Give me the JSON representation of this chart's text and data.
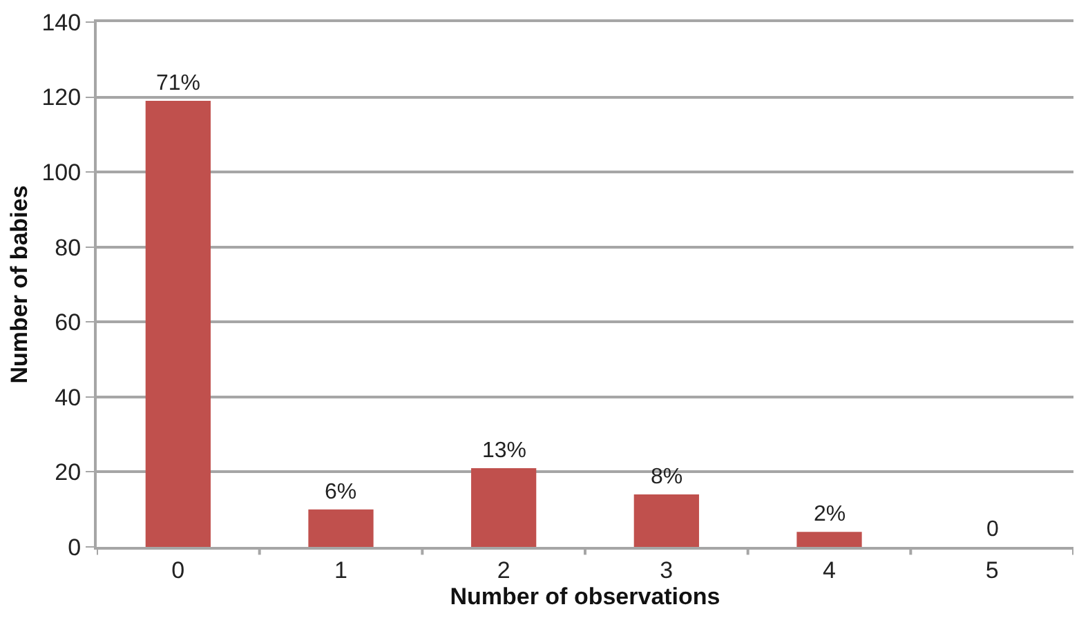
{
  "chart_data": {
    "type": "bar",
    "xlabel": "Number of observations",
    "ylabel": "Number of babies",
    "categories": [
      "0",
      "1",
      "2",
      "3",
      "4",
      "5"
    ],
    "values": [
      119,
      10,
      21,
      14,
      4,
      0
    ],
    "annotations": [
      {
        "text": "71%",
        "x": "0",
        "y": 119
      },
      {
        "text": "6%",
        "x": "1",
        "y": 10
      },
      {
        "text": "13%",
        "x": "2",
        "y": 21
      },
      {
        "text": "8%",
        "x": "3",
        "y": 14
      },
      {
        "text": "2%",
        "x": "4",
        "y": 4
      },
      {
        "text": "0",
        "x": "5",
        "y": 0
      }
    ],
    "color": "#c0504d",
    "ylim": [
      0,
      140
    ],
    "yticks": [
      0,
      20,
      40,
      60,
      80,
      100,
      120,
      140
    ],
    "grid": "y",
    "legend": false
  }
}
